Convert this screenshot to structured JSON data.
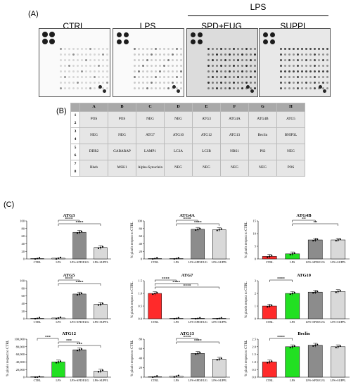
{
  "panels": {
    "a": "(A)",
    "b": "(B)",
    "c": "(C)"
  },
  "blots": {
    "group_label": "LPS",
    "labels": [
      "CTRL",
      "LPS",
      "SPD+EUG",
      "SUPPL"
    ]
  },
  "array_table": {
    "columns": [
      "A",
      "B",
      "C",
      "D",
      "E",
      "F",
      "G",
      "H"
    ],
    "row_numbers": [
      "1",
      "2",
      "3",
      "4",
      "5",
      "6",
      "7",
      "8"
    ],
    "rows": [
      [
        "POS",
        "POS",
        "NEG",
        "NEG",
        "ATG3",
        "ATG4A",
        "ATG4B",
        "ATG5"
      ],
      [
        "NEG",
        "NEG",
        "ATG7",
        "ATG10",
        "ATG12",
        "ATG13",
        "Beclin",
        "BNIP3L"
      ],
      [
        "DDR2",
        "GABARAP",
        "LAMP1",
        "LC3A",
        "LC3B",
        "NBS1",
        "P62",
        "NEG"
      ],
      [
        "Rheb",
        "MSK1",
        "Alpha-Synuclein",
        "NEG",
        "NEG",
        "NEG",
        "NEG",
        "POS"
      ]
    ]
  },
  "chart_data": [
    {
      "type": "bar",
      "title": "ATG3",
      "categories": [
        "CTRL",
        "LPS",
        "LPS+SPD/EUG",
        "LPS+SUPPL"
      ],
      "values": [
        1,
        2,
        70,
        30
      ],
      "ylim": [
        0,
        100
      ],
      "yticks": [
        "0",
        "20",
        "40",
        "60",
        "80",
        "100"
      ],
      "ylabel": "",
      "xlabel": "",
      "colors": [
        "#ffffff",
        "#ffffff",
        "#8c8c8c",
        "#d9d9d9"
      ],
      "sig": [
        {
          "from": 1,
          "to": 2,
          "label": "****"
        },
        {
          "from": 1,
          "to": 3,
          "label": "****"
        }
      ]
    },
    {
      "type": "bar",
      "title": "ATG4A",
      "categories": [
        "CTRL",
        "LPS",
        "LPS+SPD/EUG",
        "LPS+SUPPL"
      ],
      "values": [
        1,
        1,
        78,
        77
      ],
      "ylim": [
        0,
        100
      ],
      "yticks": [
        "0",
        "20",
        "40",
        "60",
        "80",
        "100"
      ],
      "ylabel": "% pixels respect to CTRL",
      "xlabel": "",
      "colors": [
        "#ffffff",
        "#ffffff",
        "#8c8c8c",
        "#d9d9d9"
      ],
      "sig": [
        {
          "from": 1,
          "to": 2,
          "label": "****"
        },
        {
          "from": 1,
          "to": 3,
          "label": "****"
        }
      ]
    },
    {
      "type": "bar",
      "title": "ATG4B",
      "categories": [
        "CTRL",
        "LPS",
        "LPS+SPD/EUG",
        "LPS+SUPPL"
      ],
      "values": [
        1,
        2,
        7.5,
        7.5
      ],
      "ylim": [
        0,
        15
      ],
      "yticks": [
        "0",
        "5",
        "10",
        "15"
      ],
      "ylabel": "% pixels respect to CTRL",
      "xlabel": "",
      "colors": [
        "#ff2a2a",
        "#22e022",
        "#8c8c8c",
        "#d9d9d9"
      ],
      "sig": [
        {
          "from": 1,
          "to": 2,
          "label": "**"
        },
        {
          "from": 1,
          "to": 3,
          "label": "**"
        }
      ]
    },
    {
      "type": "bar",
      "title": "ATG5",
      "categories": [
        "CTRL",
        "LPS",
        "LPS+SPD/EUG",
        "LPS+SUPPL"
      ],
      "values": [
        1,
        2,
        65,
        38
      ],
      "ylim": [
        0,
        100
      ],
      "yticks": [
        "0",
        "20",
        "40",
        "60",
        "80",
        "100"
      ],
      "ylabel": "",
      "xlabel": "",
      "colors": [
        "#ffffff",
        "#ffffff",
        "#8c8c8c",
        "#d9d9d9"
      ],
      "sig": [
        {
          "from": 1,
          "to": 2,
          "label": "****"
        },
        {
          "from": 1,
          "to": 3,
          "label": "****"
        }
      ]
    },
    {
      "type": "bar",
      "title": "ATG7",
      "categories": [
        "CTRL",
        "LPS",
        "LPS+SPD/EUG",
        "LPS+SUPPL"
      ],
      "values": [
        1.0,
        0.01,
        0.01,
        0.01
      ],
      "ylim": [
        0,
        1.5
      ],
      "yticks": [
        "0.0",
        "0.5",
        "1.0",
        "1.5"
      ],
      "ylabel": "% pixels respect to CTRL",
      "xlabel": "",
      "colors": [
        "#ff2a2a",
        "#ffffff",
        "#8c8c8c",
        "#d9d9d9"
      ],
      "sig": [
        {
          "from": 0,
          "to": 1,
          "label": "****"
        },
        {
          "from": 0,
          "to": 2,
          "label": "****"
        },
        {
          "from": 0,
          "to": 3,
          "label": "****"
        }
      ]
    },
    {
      "type": "bar",
      "title": "ATG10",
      "categories": [
        "CTRL",
        "LPS",
        "LPS+SPD/EUG",
        "LPS+SUPPL"
      ],
      "values": [
        1.0,
        2.0,
        2.1,
        2.15
      ],
      "ylim": [
        0,
        3
      ],
      "yticks": [
        "0",
        "1",
        "2",
        "3"
      ],
      "ylabel": "% pixels respect to CTRL",
      "xlabel": "",
      "colors": [
        "#ff2a2a",
        "#22e022",
        "#8c8c8c",
        "#d9d9d9"
      ],
      "sig": [
        {
          "from": 0,
          "to": 1,
          "label": "****"
        }
      ]
    },
    {
      "type": "bar",
      "title": "ATG12",
      "categories": [
        "CTRL",
        "LPS",
        "LPS+SPD/EUG",
        "LPS+SUPPL"
      ],
      "values": [
        1,
        40000,
        72000,
        16000
      ],
      "ylim": [
        0,
        100000
      ],
      "yticks": [
        "0",
        "20,000",
        "40,000",
        "60,000",
        "80,000",
        "100,000"
      ],
      "ylabel": "% pixels respect to CTRL",
      "xlabel": "",
      "colors": [
        "#ffffff",
        "#22e022",
        "#8c8c8c",
        "#d9d9d9"
      ],
      "sig": [
        {
          "from": 0,
          "to": 1,
          "label": "***"
        },
        {
          "from": 1,
          "to": 2,
          "label": "***"
        },
        {
          "from": 1,
          "to": 3,
          "label": "***"
        }
      ]
    },
    {
      "type": "bar",
      "title": "ATG13",
      "categories": [
        "CTRL",
        "LPS",
        "LPS+SPD/EUG",
        "LPS+SUPPL"
      ],
      "values": [
        1,
        2,
        50,
        38
      ],
      "ylim": [
        0,
        80
      ],
      "yticks": [
        "0",
        "20",
        "40",
        "60",
        "80"
      ],
      "ylabel": "% pixels respect to CTRL",
      "xlabel": "",
      "colors": [
        "#ffffff",
        "#ffffff",
        "#8c8c8c",
        "#d9d9d9"
      ],
      "sig": [
        {
          "from": 1,
          "to": 2,
          "label": "****"
        },
        {
          "from": 1,
          "to": 3,
          "label": "****"
        }
      ]
    },
    {
      "type": "bar",
      "title": "Beclin",
      "categories": [
        "CTRL",
        "LPS",
        "LPS+SPD/EUG",
        "LPS+SUPPL"
      ],
      "values": [
        1.0,
        2.0,
        2.1,
        2.0
      ],
      "ylim": [
        0,
        2.5
      ],
      "yticks": [
        "0.0",
        "0.5",
        "1.0",
        "1.5",
        "2.0",
        "2.5"
      ],
      "ylabel": "% pixels respect to CTRL",
      "xlabel": "",
      "colors": [
        "#ff2a2a",
        "#22e022",
        "#8c8c8c",
        "#d9d9d9"
      ],
      "sig": [
        {
          "from": 0,
          "to": 1,
          "label": "****"
        }
      ]
    }
  ]
}
